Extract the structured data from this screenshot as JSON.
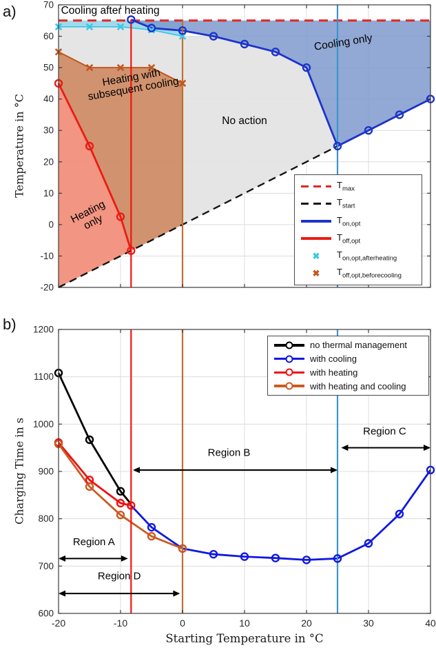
{
  "figure": {
    "panel_a_label": "a)",
    "panel_b_label": "b)"
  },
  "chart_data": [
    {
      "type": "line",
      "panel": "a",
      "title": "",
      "xlabel": "",
      "ylabel": "Temperature in °C",
      "xlim": [
        -20,
        40
      ],
      "ylim": [
        -20,
        70
      ],
      "xticks": [
        -20,
        -10,
        0,
        10,
        20,
        30,
        40
      ],
      "yticks": [
        -20,
        -10,
        0,
        10,
        20,
        30,
        40,
        50,
        60,
        70
      ],
      "show_xtick_labels": false,
      "grid": true,
      "fills": [
        {
          "name": "no-action-fill",
          "color": "#e3e3e3",
          "opacity": 0.92,
          "points": [
            [
              -20,
              63
            ],
            [
              -15,
              63
            ],
            [
              -10,
              63
            ],
            [
              -5,
              62
            ],
            [
              0,
              60
            ],
            [
              5,
              60
            ],
            [
              10,
              57.5
            ],
            [
              15,
              55
            ],
            [
              20,
              50
            ],
            [
              25,
              25
            ],
            [
              -20,
              -20
            ]
          ]
        },
        {
          "name": "heating-only-fill",
          "color": "#f4826b",
          "opacity": 0.82,
          "points": [
            [
              -20,
              45
            ],
            [
              -15,
              25
            ],
            [
              -10,
              2.5
            ],
            [
              -8.3,
              -8.3
            ],
            [
              -20,
              -20
            ]
          ]
        },
        {
          "name": "heating-subsequent-fill",
          "color": "#c97747",
          "opacity": 0.75,
          "points": [
            [
              -20,
              55
            ],
            [
              -15,
              50
            ],
            [
              -10,
              50
            ],
            [
              -5,
              50
            ],
            [
              0,
              45
            ],
            [
              0,
              0
            ],
            [
              -8.3,
              -8.3
            ],
            [
              -10,
              2.5
            ],
            [
              -15,
              25
            ],
            [
              -20,
              45
            ]
          ]
        },
        {
          "name": "cooling-after-heating-fill",
          "color": "#8fd4e9",
          "opacity": 0.85,
          "points": [
            [
              -20,
              65
            ],
            [
              0,
              65
            ],
            [
              0,
              60
            ],
            [
              -5,
              62
            ],
            [
              -10,
              63
            ],
            [
              -15,
              63
            ],
            [
              -20,
              63
            ]
          ]
        },
        {
          "name": "cooling-only-fill",
          "color": "#7e9acd",
          "opacity": 0.85,
          "points": [
            [
              -8.3,
              65
            ],
            [
              40,
              65
            ],
            [
              40,
              40
            ],
            [
              25,
              25
            ],
            [
              20,
              50
            ],
            [
              15,
              55
            ],
            [
              10,
              57.5
            ],
            [
              5,
              60
            ],
            [
              0,
              61.8
            ],
            [
              -5,
              62.6
            ]
          ]
        }
      ],
      "series": [
        {
          "name": "T_start",
          "color": "#141414",
          "style": "dashed",
          "width": 2.4,
          "marker": "none",
          "points": [
            [
              -20,
              -20
            ],
            [
              40,
              40
            ]
          ]
        },
        {
          "name": "T_max",
          "color": "#e2261f",
          "style": "dashed",
          "width": 3,
          "marker": "none",
          "points": [
            [
              -20,
              65
            ],
            [
              40,
              65
            ]
          ]
        },
        {
          "name": "T_on,opt,afterheating",
          "color": "#3ec7e6",
          "style": "solid",
          "width": 1.8,
          "marker": "x",
          "points": [
            [
              -20,
              63
            ],
            [
              -15,
              63
            ],
            [
              -10,
              63
            ],
            [
              -5,
              62
            ],
            [
              0,
              60
            ]
          ]
        },
        {
          "name": "T_off,opt,beforecooling",
          "color": "#c2571f",
          "style": "solid",
          "width": 2,
          "marker": "x",
          "points": [
            [
              -20,
              55
            ],
            [
              -15,
              50
            ],
            [
              -10,
              50
            ],
            [
              -5,
              50
            ],
            [
              0,
              45
            ]
          ]
        },
        {
          "name": "T_on,opt",
          "color": "#1d33cb",
          "style": "solid",
          "width": 2.8,
          "marker": "circle",
          "points": [
            [
              -8.3,
              65.3
            ],
            [
              -5,
              62.6
            ],
            [
              0,
              61.8
            ],
            [
              5,
              60
            ],
            [
              10,
              57.5
            ],
            [
              15,
              55
            ],
            [
              20,
              50
            ],
            [
              25,
              25
            ],
            [
              30,
              30
            ],
            [
              35,
              35
            ],
            [
              40,
              40
            ]
          ]
        },
        {
          "name": "T_off,opt",
          "color": "#ed1b13",
          "style": "solid",
          "width": 2.8,
          "marker": "circle",
          "points": [
            [
              -20,
              45
            ],
            [
              -15,
              25
            ],
            [
              -10,
              2.5
            ],
            [
              -8.3,
              -8.3
            ]
          ]
        }
      ],
      "vlines": [
        {
          "name": "heating-off-boundary-line",
          "x": -8.3,
          "color": "#f21511",
          "y0": -20,
          "y1": 65.3
        },
        {
          "name": "heating-region-boundary-line",
          "x": 0,
          "color": "#bd722e",
          "y0": -20,
          "y1": 65
        },
        {
          "name": "cooling-region-boundary-line",
          "x": 25,
          "color": "#3a94d0",
          "y0": -20,
          "y1": 70
        }
      ],
      "annotations": [
        {
          "name": "label-cooling-after-heating",
          "lines": [
            "Cooling after heating"
          ],
          "x": -19.6,
          "y": 67.2,
          "rotate": 0,
          "anchor": "start",
          "size": 15.5
        },
        {
          "name": "label-cooling-only",
          "lines": [
            "Cooling only"
          ],
          "x": 26,
          "y": 57,
          "rotate": -9,
          "anchor": "middle",
          "size": 15.5
        },
        {
          "name": "label-no-action",
          "lines": [
            "No action"
          ],
          "x": 10,
          "y": 32,
          "rotate": 0,
          "anchor": "middle",
          "size": 15.5
        },
        {
          "name": "label-heating-with-subsequent-cooling",
          "lines": [
            "Heating with",
            "subsequent cooling"
          ],
          "x": -8,
          "y": 44,
          "rotate": -10,
          "anchor": "middle",
          "size": 15.5
        },
        {
          "name": "label-heating-only",
          "lines": [
            "Heating",
            "only"
          ],
          "x": -14.6,
          "y": 1.5,
          "rotate": -27,
          "anchor": "middle",
          "size": 15.5
        }
      ],
      "legend": {
        "position": "lower right",
        "items": [
          {
            "main": "T",
            "sub": "max",
            "swatch": "dash",
            "color": "#e2261f"
          },
          {
            "main": "T",
            "sub": "start",
            "swatch": "dash",
            "color": "#141414"
          },
          {
            "main": "T",
            "sub": "on,opt",
            "swatch": "line",
            "color": "#1d33cb"
          },
          {
            "main": "T",
            "sub": "off,opt",
            "swatch": "line",
            "color": "#ed1b13"
          },
          {
            "main": "T",
            "sub": "on,opt,afterheating",
            "swatch": "x",
            "color": "#3ec7e6"
          },
          {
            "main": "T",
            "sub": "off,opt,beforecooling",
            "swatch": "x",
            "color": "#c2571f"
          }
        ]
      }
    },
    {
      "type": "line",
      "panel": "b",
      "title": "",
      "xlabel": "Starting Temperature in °C",
      "ylabel": "Charging Time in s",
      "xlim": [
        -20,
        40
      ],
      "ylim": [
        600,
        1200
      ],
      "xticks": [
        -20,
        -10,
        0,
        10,
        20,
        30,
        40
      ],
      "yticks": [
        600,
        700,
        800,
        900,
        1000,
        1100,
        1200
      ],
      "show_xtick_labels": true,
      "grid": true,
      "series": [
        {
          "name": "no thermal management",
          "color": "#000000",
          "style": "solid",
          "width": 2.8,
          "marker": "circle",
          "marker_skip_last": true,
          "points": [
            [
              -20,
              1108
            ],
            [
              -15,
              967
            ],
            [
              -10,
              858
            ],
            [
              -8.3,
              831
            ]
          ]
        },
        {
          "name": "with heating",
          "color": "#ee1111",
          "style": "solid",
          "width": 2.8,
          "marker": "circle",
          "points": [
            [
              -20,
              961
            ],
            [
              -15,
              882
            ],
            [
              -10,
              833
            ],
            [
              -8.3,
              828
            ]
          ]
        },
        {
          "name": "with cooling",
          "color": "#1018e0",
          "style": "solid",
          "width": 2.8,
          "marker": "circle",
          "marker_skip_first": true,
          "points": [
            [
              -8.3,
              828
            ],
            [
              -5,
              782
            ],
            [
              0,
              737
            ],
            [
              5,
              725
            ],
            [
              10,
              720
            ],
            [
              15,
              717
            ],
            [
              20,
              713
            ],
            [
              25,
              716
            ],
            [
              30,
              748
            ],
            [
              35,
              810
            ],
            [
              40,
              903
            ]
          ]
        },
        {
          "name": "with heating and cooling",
          "color": "#cc5a20",
          "style": "solid",
          "width": 2.8,
          "marker": "circle",
          "points": [
            [
              -20,
              958
            ],
            [
              -15,
              868
            ],
            [
              -10,
              808
            ],
            [
              -5,
              763
            ],
            [
              0,
              737
            ]
          ]
        }
      ],
      "vlines": [
        {
          "name": "region-boundary-red-line",
          "x": -8.3,
          "color": "#f21511",
          "y0": 600,
          "y1": 1200
        },
        {
          "name": "region-boundary-orange-line",
          "x": 0,
          "color": "#bd722e",
          "y0": 600,
          "y1": 1200
        },
        {
          "name": "region-boundary-blue-line",
          "x": 25,
          "color": "#3a94d0",
          "y0": 600,
          "y1": 1200
        }
      ],
      "annotations": [
        {
          "name": "label-region-a",
          "lines": [
            "Region A"
          ],
          "x": -14.3,
          "y": 744,
          "rotate": 0,
          "anchor": "middle",
          "size": 15
        },
        {
          "name": "label-region-b",
          "lines": [
            "Region B"
          ],
          "x": 7.5,
          "y": 933,
          "rotate": 0,
          "anchor": "middle",
          "size": 15
        },
        {
          "name": "label-region-c",
          "lines": [
            "Region C"
          ],
          "x": 32.6,
          "y": 978,
          "rotate": 0,
          "anchor": "middle",
          "size": 15
        },
        {
          "name": "label-region-d",
          "lines": [
            "Region D"
          ],
          "x": -10.2,
          "y": 672,
          "rotate": 0,
          "anchor": "middle",
          "size": 15
        }
      ],
      "arrows": [
        {
          "name": "region-a-arrow",
          "x1": -20,
          "x2": -8.8,
          "y": 716
        },
        {
          "name": "region-b-arrow",
          "x1": -8,
          "x2": 25,
          "y": 903
        },
        {
          "name": "region-c-arrow",
          "x1": 25.6,
          "x2": 40,
          "y": 950
        },
        {
          "name": "region-d-arrow",
          "x1": -20,
          "x2": -0.4,
          "y": 642
        }
      ],
      "legend": {
        "position": "upper right",
        "items": [
          {
            "label": "no thermal management",
            "swatch": "line-circle",
            "color": "#000000"
          },
          {
            "label": "with cooling",
            "swatch": "line-circle",
            "color": "#1018e0"
          },
          {
            "label": "with heating",
            "swatch": "line-circle",
            "color": "#ee1111"
          },
          {
            "label": "with heating and cooling",
            "swatch": "line-circle",
            "color": "#cc5a20"
          }
        ]
      }
    }
  ]
}
